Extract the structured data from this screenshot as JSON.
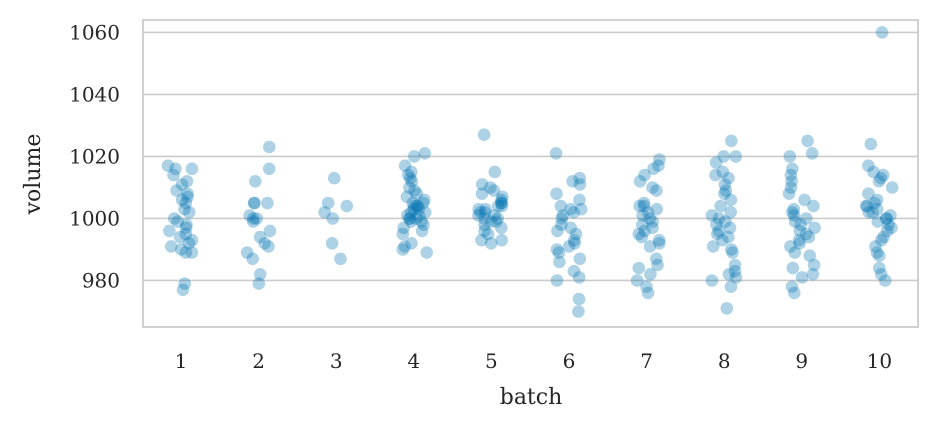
{
  "chart_data": {
    "type": "scatter",
    "subtype": "stripplot",
    "xlabel": "batch",
    "ylabel": "volume",
    "categories": [
      "1",
      "2",
      "3",
      "4",
      "5",
      "6",
      "7",
      "8",
      "9",
      "10"
    ],
    "ylim": [
      965,
      1064
    ],
    "yticks": [
      980,
      1000,
      1020,
      1040,
      1060
    ],
    "grid": "horizontal",
    "legend": "none",
    "marker_color": "#0173b2",
    "marker_alpha": 0.32,
    "points": {
      "1": [
        1017,
        1016,
        1016,
        1014,
        1012,
        1011,
        1009,
        1008,
        1007,
        1006,
        1005,
        1003,
        1002,
        1000,
        999,
        998,
        997,
        996,
        995,
        994,
        993,
        992,
        991,
        990,
        989,
        989,
        979,
        977
      ],
      "2": [
        1023,
        1016,
        1012,
        1005,
        1005,
        1005,
        1001,
        1000,
        1000,
        999,
        996,
        994,
        992,
        991,
        989,
        987,
        982,
        979
      ],
      "3": [
        1013,
        1005,
        1004,
        1002,
        1000,
        992,
        987
      ],
      "4": [
        1021,
        1020,
        1017,
        1015,
        1014,
        1013,
        1012,
        1010,
        1009,
        1008,
        1007,
        1006,
        1005,
        1005,
        1004,
        1004,
        1004,
        1003,
        1003,
        1002,
        1002,
        1001,
        1001,
        1000,
        1000,
        1000,
        999,
        999,
        998,
        997,
        996,
        995,
        992,
        991,
        990,
        989
      ],
      "5": [
        1027,
        1015,
        1011,
        1010,
        1009,
        1008,
        1007,
        1006,
        1005,
        1005,
        1004,
        1004,
        1003,
        1003,
        1002,
        1002,
        1001,
        1001,
        1000,
        1000,
        999,
        999,
        998,
        997,
        996,
        995,
        993,
        993,
        992
      ],
      "6": [
        1021,
        1013,
        1012,
        1011,
        1008,
        1006,
        1004,
        1003,
        1003,
        1002,
        1001,
        1000,
        998,
        997,
        996,
        995,
        993,
        992,
        991,
        990,
        989,
        987,
        986,
        983,
        981,
        980,
        974,
        970
      ],
      "7": [
        1019,
        1017,
        1016,
        1014,
        1012,
        1010,
        1009,
        1005,
        1004,
        1004,
        1003,
        1002,
        1001,
        1000,
        999,
        998,
        997,
        996,
        995,
        994,
        993,
        992,
        991,
        987,
        985,
        984,
        982,
        980,
        978,
        976
      ],
      "8": [
        1025,
        1020,
        1020,
        1018,
        1015,
        1014,
        1013,
        1011,
        1009,
        1008,
        1006,
        1004,
        1002,
        1001,
        1000,
        999,
        998,
        997,
        996,
        995,
        994,
        993,
        991,
        990,
        989,
        985,
        983,
        982,
        981,
        980,
        978,
        971
      ],
      "9": [
        1025,
        1021,
        1020,
        1016,
        1014,
        1012,
        1010,
        1008,
        1006,
        1004,
        1003,
        1002,
        1001,
        1000,
        999,
        998,
        997,
        996,
        995,
        994,
        993,
        992,
        991,
        989,
        988,
        985,
        984,
        982,
        981,
        978,
        976
      ],
      "10": [
        1060,
        1024,
        1017,
        1015,
        1014,
        1013,
        1012,
        1010,
        1008,
        1006,
        1005,
        1004,
        1004,
        1003,
        1002,
        1002,
        1001,
        1000,
        1000,
        999,
        998,
        997,
        996,
        994,
        993,
        991,
        989,
        988,
        984,
        982,
        980
      ]
    }
  }
}
